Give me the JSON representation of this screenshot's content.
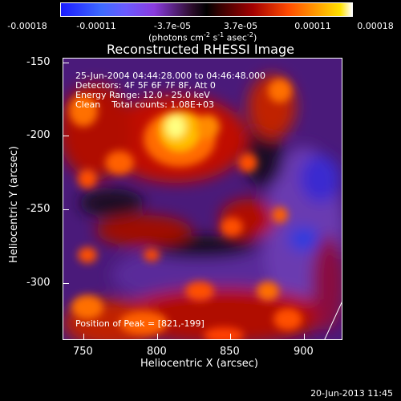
{
  "colorbar": {
    "ticks": [
      "-0.00018",
      "-0.00011",
      "-3.7e-05",
      "3.7e-05",
      "0.00011",
      "0.00018"
    ],
    "units_text": "(photons cm",
    "units_sup1": "-2",
    "units_mid": " s",
    "units_sup2": "-1",
    "units_end": " asec",
    "units_sup3": "-2",
    "units_close": ")"
  },
  "title": "Reconstructed RHESSI Image",
  "info": {
    "line1": "25-Jun-2004 04:44:28.000 to 04:46:48.000",
    "line2": "Detectors: 4F 5F 6F 7F 8F, Att 0",
    "line3": "Energy Range: 12.0 - 25.0 keV",
    "line4": "Clean    Total counts: 1.08E+03",
    "peak": "Position of Peak = [821,-199]"
  },
  "axes": {
    "ylabel": "Heliocentric Y (arcsec)",
    "xlabel": "Heliocentric X (arcsec)",
    "yticks": [
      "-150",
      "-200",
      "-250",
      "-300"
    ],
    "xticks": [
      "750",
      "800",
      "850",
      "900"
    ]
  },
  "footer": "20-Jun-2013 11:45"
}
